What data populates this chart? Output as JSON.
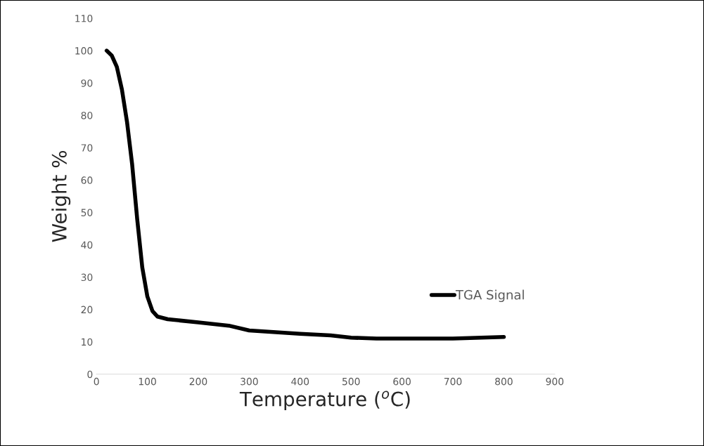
{
  "chart_data": {
    "type": "line",
    "xlabel": "Temperature ($^{o}$C)",
    "ylabel": "Weight %",
    "x": [
      20,
      30,
      40,
      50,
      60,
      70,
      80,
      90,
      100,
      110,
      120,
      140,
      200,
      260,
      300,
      400,
      460,
      500,
      550,
      600,
      700,
      800
    ],
    "series": [
      {
        "name": "TGA Signal",
        "color": "#000000",
        "values": [
          100,
          98.5,
          95,
          88,
          78,
          65,
          48,
          33,
          24,
          19.5,
          17.8,
          17,
          16,
          15,
          13.5,
          12.5,
          12,
          11.3,
          11,
          11,
          11,
          11.5
        ]
      }
    ],
    "xlim": [
      0,
      900
    ],
    "xticks": [
      0,
      100,
      200,
      300,
      400,
      500,
      600,
      700,
      800,
      900
    ],
    "ylim": [
      0,
      110
    ],
    "yticks": [
      0,
      10,
      20,
      30,
      40,
      50,
      60,
      70,
      80,
      90,
      100,
      110
    ],
    "grid": false,
    "legend": "right",
    "marker": "none",
    "line_style": "solid"
  }
}
